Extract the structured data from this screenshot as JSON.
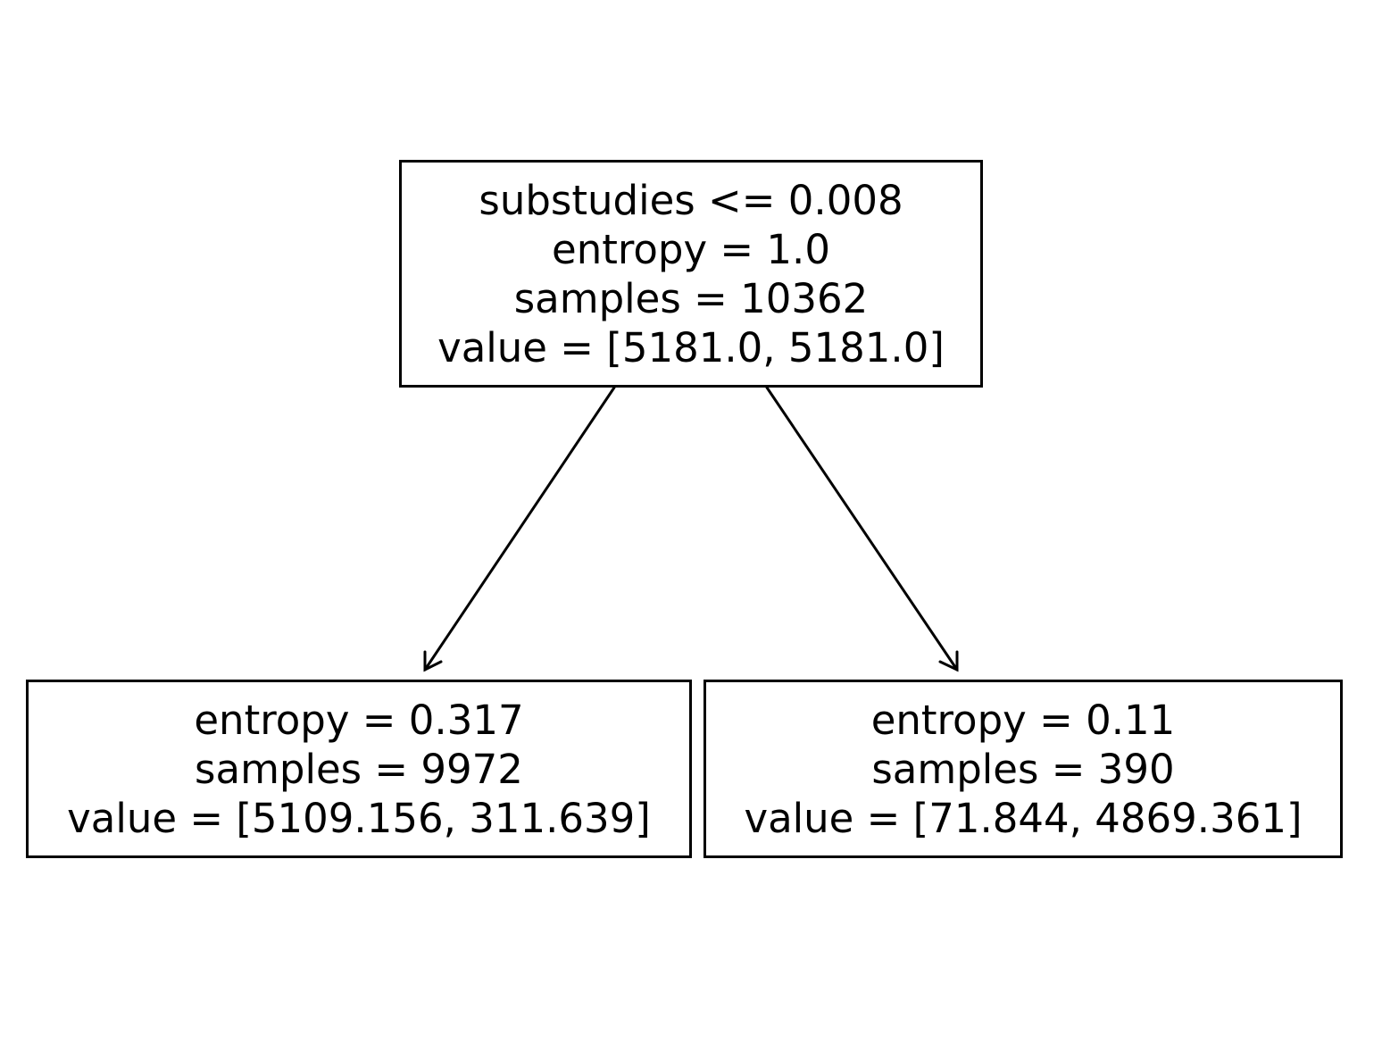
{
  "tree": {
    "root": {
      "split": "substudies <= 0.008",
      "entropy": "entropy = 1.0",
      "samples": "samples = 10362",
      "value": "value = [5181.0, 5181.0]"
    },
    "left": {
      "entropy": "entropy = 0.317",
      "samples": "samples = 9972",
      "value": "value = [5109.156, 311.639]"
    },
    "right": {
      "entropy": "entropy = 0.11",
      "samples": "samples = 390",
      "value": "value = [71.844, 4869.361]"
    }
  }
}
